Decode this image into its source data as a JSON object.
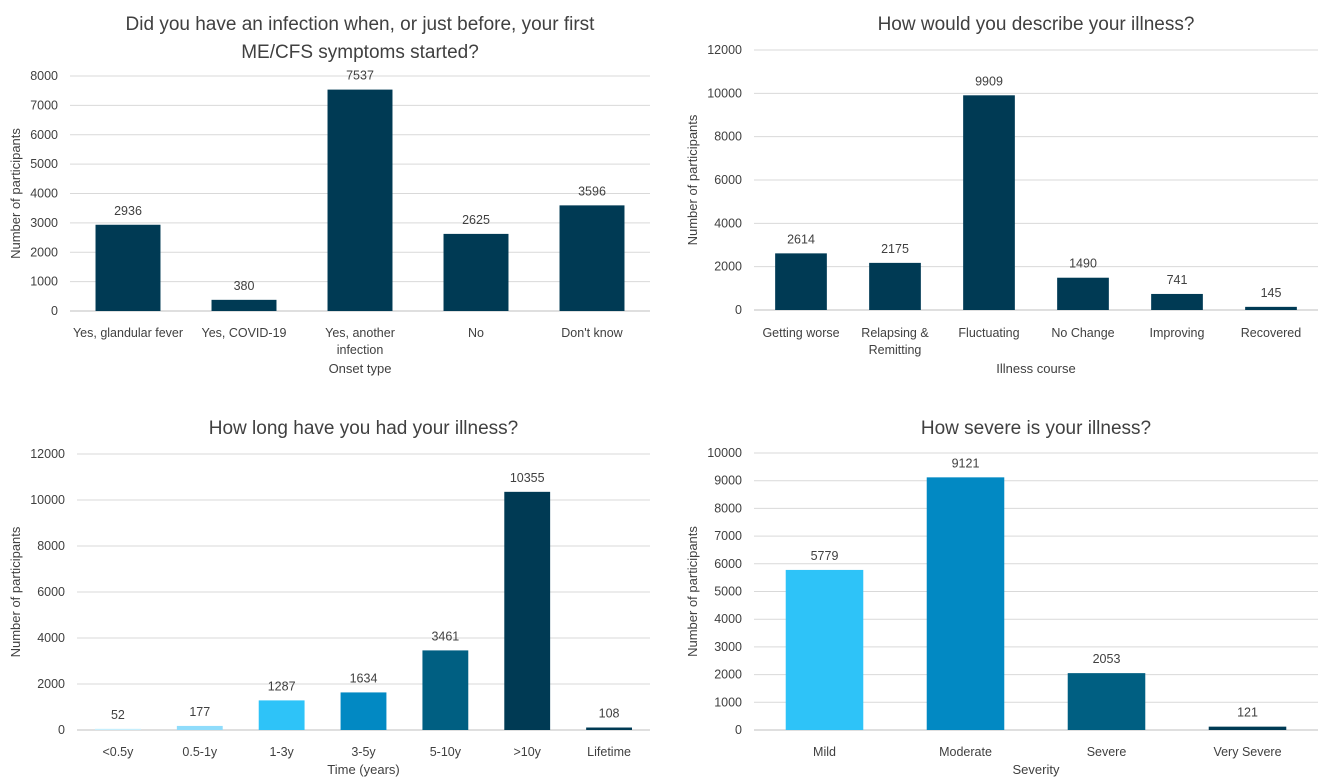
{
  "chart_data": [
    {
      "type": "bar",
      "title": "Did you have an infection when, or just before, your first ME/CFS symptoms started?",
      "title_lines": [
        "Did you have an infection when, or just before, your first",
        "ME/CFS symptoms started?"
      ],
      "xlabel": "Onset type",
      "ylabel": "Number of participants",
      "ylim": [
        0,
        8000
      ],
      "ytick_step": 1000,
      "grid": true,
      "categories": [
        "Yes, glandular fever",
        "Yes, COVID-19",
        "Yes, another infection",
        "No",
        "Don't know"
      ],
      "category_lines": [
        [
          "Yes, glandular fever"
        ],
        [
          "Yes, COVID-19"
        ],
        [
          "Yes, another",
          "infection"
        ],
        [
          "No"
        ],
        [
          "Don't know"
        ]
      ],
      "values": [
        2936,
        380,
        7537,
        2625,
        3596
      ],
      "colors": [
        "#003a54",
        "#003a54",
        "#003a54",
        "#003a54",
        "#003a54"
      ]
    },
    {
      "type": "bar",
      "title": "How would you describe your illness?",
      "title_lines": [
        "How would you describe your illness?"
      ],
      "xlabel": "Illness course",
      "ylabel": "Number of participants",
      "ylim": [
        0,
        12000
      ],
      "ytick_step": 2000,
      "grid": true,
      "categories": [
        "Getting worse",
        "Relapsing & Remitting",
        "Fluctuating",
        "No Change",
        "Improving",
        "Recovered"
      ],
      "category_lines": [
        [
          "Getting worse"
        ],
        [
          "Relapsing &",
          "Remitting"
        ],
        [
          "Fluctuating"
        ],
        [
          "No Change"
        ],
        [
          "Improving"
        ],
        [
          "Recovered"
        ]
      ],
      "values": [
        2614,
        2175,
        9909,
        1490,
        741,
        145
      ],
      "colors": [
        "#003a54",
        "#003a54",
        "#003a54",
        "#003a54",
        "#003a54",
        "#003a54"
      ]
    },
    {
      "type": "bar",
      "title": "How long have you had your illness?",
      "title_lines": [
        "How long have you had your illness?"
      ],
      "xlabel": "Time (years)",
      "ylabel": "Number of participants",
      "ylim": [
        0,
        12000
      ],
      "ytick_step": 2000,
      "grid": true,
      "categories": [
        "<0.5y",
        "0.5-1y",
        "1-3y",
        "3-5y",
        "5-10y",
        ">10y",
        "Lifetime"
      ],
      "category_lines": [
        [
          "<0.5y"
        ],
        [
          "0.5-1y"
        ],
        [
          "1-3y"
        ],
        [
          "3-5y"
        ],
        [
          "5-10y"
        ],
        [
          ">10y"
        ],
        [
          "Lifetime"
        ]
      ],
      "values": [
        52,
        177,
        1287,
        1634,
        3461,
        10355,
        108
      ],
      "colors": [
        "#c6eefc",
        "#8fdcfb",
        "#2ec3f8",
        "#0289c3",
        "#005f82",
        "#003a54",
        "#003a54"
      ]
    },
    {
      "type": "bar",
      "title": "How severe is your illness?",
      "title_lines": [
        "How severe is your illness?"
      ],
      "xlabel": "Severity",
      "ylabel": "Number of participants",
      "ylim": [
        0,
        10000
      ],
      "ytick_step": 1000,
      "grid": true,
      "categories": [
        "Mild",
        "Moderate",
        "Severe",
        "Very Severe"
      ],
      "category_lines": [
        [
          "Mild"
        ],
        [
          "Moderate"
        ],
        [
          "Severe"
        ],
        [
          "Very Severe"
        ]
      ],
      "values": [
        5779,
        9121,
        2053,
        121
      ],
      "colors": [
        "#2ec3f8",
        "#0289c3",
        "#005f82",
        "#003a54"
      ]
    }
  ]
}
